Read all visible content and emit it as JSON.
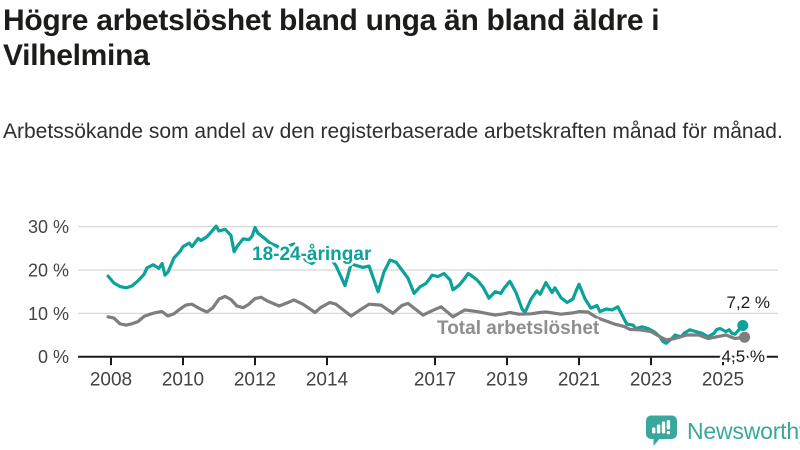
{
  "header": {
    "title": "Högre arbetslöshet bland unga än bland äldre i Vilhelmina",
    "subtitle": "Arbetssökande som andel av den registerbaserade arbetskraften månad för månad."
  },
  "footer": {
    "brand": "Newsworthy",
    "logo_icon": "bar-chart-speech-bubble"
  },
  "colors": {
    "youth_line": "#0ba29a",
    "total_line": "#7e7e7e",
    "total_label": "#8e8e8e",
    "axis": "#1a1a1a",
    "grid": "#d8d8d8",
    "tick_text": "#444444",
    "brand_teal": "#3aa79d"
  },
  "chart_data": {
    "type": "line",
    "title": "Högre arbetslöshet bland unga än bland äldre i Vilhelmina",
    "subtitle": "Arbetssökande som andel av den registerbaserade arbetskraften månad för månad.",
    "unit": "percent of registered labour force",
    "grid": "horizontal",
    "legend_position": "inline-labels-on-lines",
    "xlim": [
      2007.9,
      2026.2
    ],
    "ylim": [
      0,
      32
    ],
    "x_tick_years": [
      2008,
      2010,
      2012,
      2014,
      2017,
      2019,
      2021,
      2023,
      2025
    ],
    "x_tick_labels": [
      "2008",
      "2010",
      "2012",
      "2014",
      "2017",
      "2019",
      "2021",
      "2023",
      "2025"
    ],
    "y_tick_values": [
      0,
      10,
      20,
      30
    ],
    "y_tick_labels": [
      "0 %",
      "10 %",
      "20 %",
      "30 %"
    ],
    "series": [
      {
        "name": "18-24-åringar",
        "color": "#0ba29a",
        "end_label": "7,2 %",
        "end_value": 7.2,
        "points": [
          [
            2007.92,
            18.6
          ],
          [
            2008.08,
            17.0
          ],
          [
            2008.25,
            16.2
          ],
          [
            2008.42,
            15.9
          ],
          [
            2008.58,
            16.3
          ],
          [
            2008.75,
            17.5
          ],
          [
            2008.92,
            19.0
          ],
          [
            2009.0,
            20.5
          ],
          [
            2009.17,
            21.2
          ],
          [
            2009.33,
            20.4
          ],
          [
            2009.42,
            21.5
          ],
          [
            2009.5,
            18.8
          ],
          [
            2009.58,
            19.5
          ],
          [
            2009.75,
            22.8
          ],
          [
            2009.92,
            24.3
          ],
          [
            2010.0,
            25.4
          ],
          [
            2010.17,
            26.2
          ],
          [
            2010.25,
            25.4
          ],
          [
            2010.42,
            27.3
          ],
          [
            2010.5,
            26.8
          ],
          [
            2010.67,
            27.7
          ],
          [
            2010.83,
            29.2
          ],
          [
            2010.92,
            30.1
          ],
          [
            2011.0,
            29.0
          ],
          [
            2011.17,
            29.4
          ],
          [
            2011.33,
            28.0
          ],
          [
            2011.42,
            24.2
          ],
          [
            2011.5,
            25.4
          ],
          [
            2011.67,
            27.2
          ],
          [
            2011.83,
            27.0
          ],
          [
            2011.92,
            27.8
          ],
          [
            2012.0,
            29.8
          ],
          [
            2012.08,
            28.5
          ],
          [
            2012.25,
            27.4
          ],
          [
            2012.42,
            26.2
          ],
          [
            2012.58,
            25.6
          ],
          [
            2012.75,
            24.8
          ],
          [
            2012.92,
            25.5
          ],
          [
            2013.08,
            26.0
          ],
          [
            2013.25,
            24.0
          ],
          [
            2013.42,
            22.2
          ],
          [
            2013.58,
            21.5
          ],
          [
            2013.75,
            22.5
          ],
          [
            2013.92,
            23.5
          ],
          [
            2014.08,
            22.8
          ],
          [
            2014.25,
            21.0
          ],
          [
            2014.5,
            16.4
          ],
          [
            2014.67,
            21.4
          ],
          [
            2014.83,
            21.0
          ],
          [
            2015.0,
            20.6
          ],
          [
            2015.17,
            20.9
          ],
          [
            2015.42,
            15.0
          ],
          [
            2015.58,
            19.5
          ],
          [
            2015.75,
            22.3
          ],
          [
            2015.92,
            21.8
          ],
          [
            2016.08,
            20.0
          ],
          [
            2016.25,
            18.1
          ],
          [
            2016.42,
            14.6
          ],
          [
            2016.58,
            16.1
          ],
          [
            2016.75,
            16.9
          ],
          [
            2016.92,
            18.8
          ],
          [
            2017.08,
            18.5
          ],
          [
            2017.25,
            19.2
          ],
          [
            2017.42,
            17.7
          ],
          [
            2017.5,
            15.4
          ],
          [
            2017.67,
            16.5
          ],
          [
            2017.83,
            18.1
          ],
          [
            2017.92,
            19.2
          ],
          [
            2018.0,
            18.8
          ],
          [
            2018.17,
            17.7
          ],
          [
            2018.33,
            16.1
          ],
          [
            2018.5,
            13.5
          ],
          [
            2018.67,
            15.0
          ],
          [
            2018.83,
            14.6
          ],
          [
            2018.92,
            15.8
          ],
          [
            2019.08,
            17.4
          ],
          [
            2019.25,
            14.8
          ],
          [
            2019.42,
            11.0
          ],
          [
            2019.5,
            10.2
          ],
          [
            2019.67,
            13.3
          ],
          [
            2019.83,
            15.2
          ],
          [
            2019.92,
            14.4
          ],
          [
            2020.08,
            17.1
          ],
          [
            2020.25,
            14.8
          ],
          [
            2020.33,
            15.9
          ],
          [
            2020.5,
            13.6
          ],
          [
            2020.67,
            12.5
          ],
          [
            2020.83,
            13.3
          ],
          [
            2020.92,
            15.2
          ],
          [
            2021.0,
            16.7
          ],
          [
            2021.17,
            13.3
          ],
          [
            2021.33,
            11.2
          ],
          [
            2021.5,
            11.8
          ],
          [
            2021.58,
            10.4
          ],
          [
            2021.75,
            11.0
          ],
          [
            2021.92,
            10.8
          ],
          [
            2022.08,
            11.5
          ],
          [
            2022.17,
            10.0
          ],
          [
            2022.33,
            7.5
          ],
          [
            2022.5,
            7.3
          ],
          [
            2022.58,
            6.5
          ],
          [
            2022.75,
            6.9
          ],
          [
            2022.92,
            6.5
          ],
          [
            2023.08,
            5.8
          ],
          [
            2023.25,
            4.6
          ],
          [
            2023.33,
            3.5
          ],
          [
            2023.42,
            3.1
          ],
          [
            2023.58,
            4.2
          ],
          [
            2023.67,
            5.0
          ],
          [
            2023.83,
            4.6
          ],
          [
            2023.92,
            5.4
          ],
          [
            2024.08,
            6.2
          ],
          [
            2024.25,
            5.8
          ],
          [
            2024.42,
            5.4
          ],
          [
            2024.58,
            4.6
          ],
          [
            2024.75,
            5.4
          ],
          [
            2024.83,
            6.3
          ],
          [
            2024.92,
            6.5
          ],
          [
            2025.08,
            5.8
          ],
          [
            2025.17,
            6.2
          ],
          [
            2025.25,
            5.4
          ],
          [
            2025.33,
            5.2
          ],
          [
            2025.42,
            6.0
          ],
          [
            2025.55,
            7.2
          ]
        ]
      },
      {
        "name": "Total arbetslöshet",
        "color": "#7e7e7e",
        "end_label": "4,5 %",
        "end_value": 4.5,
        "points": [
          [
            2007.92,
            9.2
          ],
          [
            2008.08,
            8.9
          ],
          [
            2008.25,
            7.6
          ],
          [
            2008.42,
            7.3
          ],
          [
            2008.58,
            7.6
          ],
          [
            2008.75,
            8.1
          ],
          [
            2008.92,
            9.3
          ],
          [
            2009.08,
            9.8
          ],
          [
            2009.25,
            10.2
          ],
          [
            2009.42,
            10.4
          ],
          [
            2009.58,
            9.4
          ],
          [
            2009.75,
            9.9
          ],
          [
            2009.92,
            11.0
          ],
          [
            2010.08,
            11.9
          ],
          [
            2010.25,
            12.1
          ],
          [
            2010.5,
            10.9
          ],
          [
            2010.67,
            10.3
          ],
          [
            2010.83,
            11.3
          ],
          [
            2011.0,
            13.3
          ],
          [
            2011.17,
            13.9
          ],
          [
            2011.33,
            13.2
          ],
          [
            2011.5,
            11.7
          ],
          [
            2011.67,
            11.3
          ],
          [
            2011.83,
            12.1
          ],
          [
            2012.0,
            13.4
          ],
          [
            2012.17,
            13.7
          ],
          [
            2012.33,
            12.9
          ],
          [
            2012.5,
            12.3
          ],
          [
            2012.67,
            11.7
          ],
          [
            2012.92,
            12.5
          ],
          [
            2013.08,
            13.1
          ],
          [
            2013.33,
            12.1
          ],
          [
            2013.67,
            10.2
          ],
          [
            2013.83,
            11.4
          ],
          [
            2014.08,
            12.5
          ],
          [
            2014.25,
            12.1
          ],
          [
            2014.67,
            9.4
          ],
          [
            2014.92,
            10.8
          ],
          [
            2015.17,
            12.1
          ],
          [
            2015.5,
            11.9
          ],
          [
            2015.83,
            10.0
          ],
          [
            2016.08,
            11.8
          ],
          [
            2016.25,
            12.3
          ],
          [
            2016.67,
            9.6
          ],
          [
            2016.92,
            10.6
          ],
          [
            2017.17,
            11.5
          ],
          [
            2017.5,
            9.2
          ],
          [
            2017.83,
            10.8
          ],
          [
            2018.17,
            10.4
          ],
          [
            2018.42,
            10.0
          ],
          [
            2018.67,
            9.6
          ],
          [
            2018.92,
            9.9
          ],
          [
            2019.08,
            10.2
          ],
          [
            2019.33,
            9.8
          ],
          [
            2019.67,
            9.9
          ],
          [
            2019.92,
            10.2
          ],
          [
            2020.08,
            10.3
          ],
          [
            2020.5,
            9.8
          ],
          [
            2020.83,
            10.1
          ],
          [
            2021.0,
            10.4
          ],
          [
            2021.25,
            10.3
          ],
          [
            2021.5,
            9.0
          ],
          [
            2021.83,
            8.0
          ],
          [
            2022.0,
            7.5
          ],
          [
            2022.25,
            7.0
          ],
          [
            2022.42,
            6.3
          ],
          [
            2022.67,
            6.2
          ],
          [
            2023.0,
            5.8
          ],
          [
            2023.25,
            4.6
          ],
          [
            2023.42,
            3.9
          ],
          [
            2023.67,
            4.2
          ],
          [
            2024.0,
            5.0
          ],
          [
            2024.33,
            5.0
          ],
          [
            2024.58,
            4.2
          ],
          [
            2024.83,
            4.6
          ],
          [
            2025.08,
            5.0
          ],
          [
            2025.33,
            4.2
          ],
          [
            2025.6,
            4.5
          ]
        ]
      }
    ]
  }
}
